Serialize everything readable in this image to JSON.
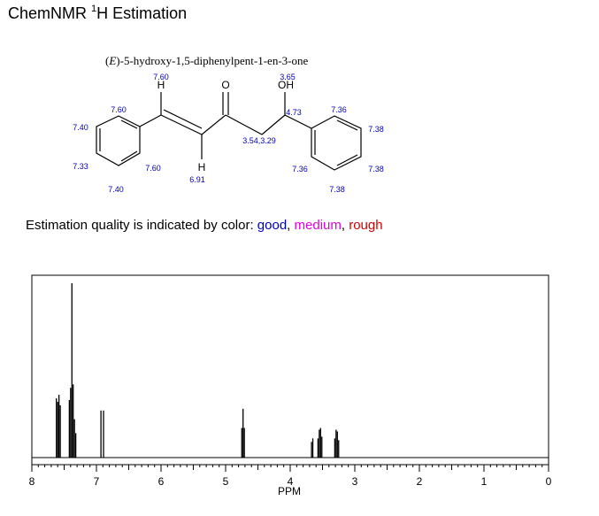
{
  "header": {
    "title_prefix": "ChemNMR ",
    "title_sup": "1",
    "title_suffix": "H Estimation"
  },
  "molecule": {
    "name": "(E)-5-hydroxy-1,5-diphenylpent-1-en-3-one",
    "name_italic": "E",
    "atoms": {
      "H1": "H",
      "O1": "O",
      "OH": "OH",
      "H2": "H"
    },
    "shifts": {
      "vinyl_h_top": "7.60",
      "oh": "3.65",
      "ph_left_ortho_top": "7.60",
      "ph_left_meta_top": "7.40",
      "ph_left_para": "7.33",
      "ph_left_meta_bottom": "7.40",
      "ph_left_ortho_bottom": "7.60",
      "vinyl_h_bottom": "6.91",
      "ch2": "3.54,3.29",
      "ch": "4.73",
      "ph_right_ortho_top": "7.36",
      "ph_right_meta_top": "7.38",
      "ph_right_para": "7.38",
      "ph_right_meta_bottom": "7.38",
      "ph_right_ortho_bottom": "7.36"
    }
  },
  "quality_legend": {
    "prefix": "Estimation quality is indicated by color: ",
    "good": "good",
    "sep1": ", ",
    "medium": "medium",
    "sep2": ", ",
    "rough": "rough",
    "colors": {
      "good": "#0000c0",
      "medium": "#e000e0",
      "rough": "#d00000"
    }
  },
  "chart_data": {
    "type": "line",
    "title": "",
    "xlabel": "PPM",
    "ylabel": "",
    "xlim": [
      8,
      0
    ],
    "x_reversed": true,
    "x_tick_labels": [
      "8",
      "7",
      "6",
      "5",
      "4",
      "3",
      "2",
      "1",
      "0"
    ],
    "grid": false,
    "peaks": [
      {
        "ppm": 7.62,
        "intensity": 0.34
      },
      {
        "ppm": 7.6,
        "intensity": 0.32
      },
      {
        "ppm": 7.58,
        "intensity": 0.36
      },
      {
        "ppm": 7.56,
        "intensity": 0.3
      },
      {
        "ppm": 7.42,
        "intensity": 0.33
      },
      {
        "ppm": 7.4,
        "intensity": 0.4
      },
      {
        "ppm": 7.38,
        "intensity": 1.0
      },
      {
        "ppm": 7.36,
        "intensity": 0.42
      },
      {
        "ppm": 7.34,
        "intensity": 0.22
      },
      {
        "ppm": 7.32,
        "intensity": 0.14
      },
      {
        "ppm": 6.93,
        "intensity": 0.27
      },
      {
        "ppm": 6.89,
        "intensity": 0.27
      },
      {
        "ppm": 4.75,
        "intensity": 0.17
      },
      {
        "ppm": 4.73,
        "intensity": 0.28
      },
      {
        "ppm": 4.71,
        "intensity": 0.17
      },
      {
        "ppm": 3.67,
        "intensity": 0.09
      },
      {
        "ppm": 3.65,
        "intensity": 0.11
      },
      {
        "ppm": 3.57,
        "intensity": 0.11
      },
      {
        "ppm": 3.55,
        "intensity": 0.16
      },
      {
        "ppm": 3.53,
        "intensity": 0.17
      },
      {
        "ppm": 3.51,
        "intensity": 0.12
      },
      {
        "ppm": 3.31,
        "intensity": 0.11
      },
      {
        "ppm": 3.29,
        "intensity": 0.16
      },
      {
        "ppm": 3.27,
        "intensity": 0.15
      },
      {
        "ppm": 3.25,
        "intensity": 0.1
      }
    ]
  }
}
